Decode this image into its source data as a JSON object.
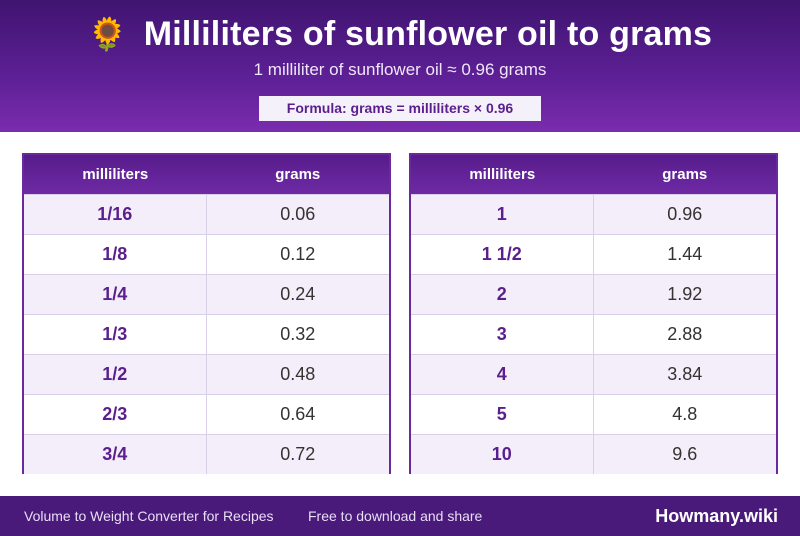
{
  "header": {
    "icon": "sunflower-icon",
    "icon_glyph": "🌻",
    "title": "Milliliters of sunflower oil to grams",
    "subtitle": "1 milliliter of sunflower oil ≈ 0.96 grams",
    "formula": "Formula: grams = milliliters × 0.96"
  },
  "tables": [
    {
      "headers": [
        "milliliters",
        "grams"
      ],
      "rows": [
        [
          "1/16",
          "0.06"
        ],
        [
          "1/8",
          "0.12"
        ],
        [
          "1/4",
          "0.24"
        ],
        [
          "1/3",
          "0.32"
        ],
        [
          "1/2",
          "0.48"
        ],
        [
          "2/3",
          "0.64"
        ],
        [
          "3/4",
          "0.72"
        ]
      ]
    },
    {
      "headers": [
        "milliliters",
        "grams"
      ],
      "rows": [
        [
          "1",
          "0.96"
        ],
        [
          "1 1/2",
          "1.44"
        ],
        [
          "2",
          "1.92"
        ],
        [
          "3",
          "2.88"
        ],
        [
          "4",
          "3.84"
        ],
        [
          "5",
          "4.8"
        ],
        [
          "10",
          "9.6"
        ]
      ]
    }
  ],
  "footer": {
    "left_text": "Volume to Weight Converter for Recipes",
    "middle_text": "Free to download and share",
    "brand": "Howmany.wiki"
  },
  "colors": {
    "header_dark": "#3f1470",
    "header_light": "#7a2cae",
    "accent_text": "#5a1f8d",
    "stripe": "#f3eefa",
    "footer_bg": "#4a1a7a"
  }
}
